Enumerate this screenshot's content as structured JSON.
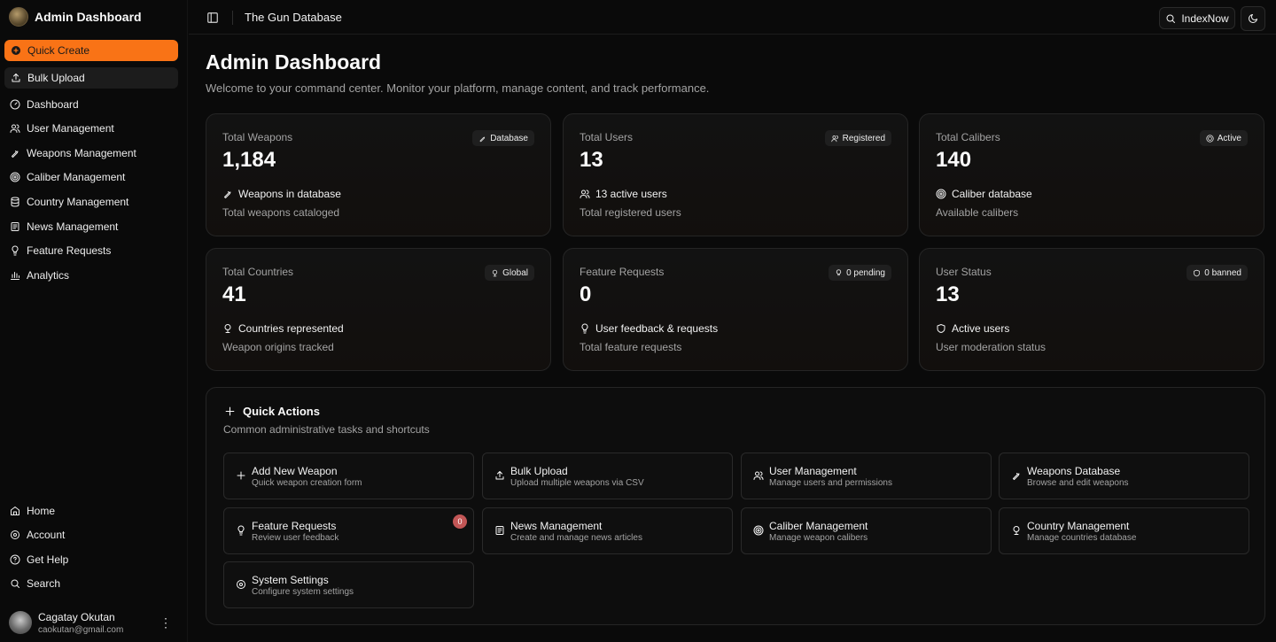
{
  "sidebar": {
    "brand": "Admin Dashboard",
    "quick_create": "Quick Create",
    "bulk_upload": "Bulk Upload",
    "nav": [
      {
        "label": "Dashboard",
        "icon": "gauge-icon"
      },
      {
        "label": "User Management",
        "icon": "users-icon"
      },
      {
        "label": "Weapons Management",
        "icon": "bullet-icon"
      },
      {
        "label": "Caliber Management",
        "icon": "target-icon"
      },
      {
        "label": "Country Management",
        "icon": "database-icon"
      },
      {
        "label": "News Management",
        "icon": "newspaper-icon"
      },
      {
        "label": "Feature Requests",
        "icon": "lightbulb-icon"
      },
      {
        "label": "Analytics",
        "icon": "bar-chart-icon"
      }
    ],
    "secondary": [
      {
        "label": "Home",
        "icon": "home-icon"
      },
      {
        "label": "Account",
        "icon": "gear-icon"
      },
      {
        "label": "Get Help",
        "icon": "help-icon"
      },
      {
        "label": "Search",
        "icon": "search-icon"
      }
    ],
    "user": {
      "name": "Cagatay Okutan",
      "email": "caokutan@gmail.com"
    }
  },
  "header": {
    "title": "The Gun Database",
    "indexnow_label": "IndexNow"
  },
  "main": {
    "title": "Admin Dashboard",
    "subtitle": "Welcome to your command center. Monitor your platform, manage content, and track performance.",
    "cards": [
      {
        "label": "Total Weapons",
        "value": "1,184",
        "badge": "Database",
        "desc": "Weapons in database",
        "foot": "Total weapons cataloged"
      },
      {
        "label": "Total Users",
        "value": "13",
        "badge": "Registered",
        "desc": "13 active users",
        "foot": "Total registered users"
      },
      {
        "label": "Total Calibers",
        "value": "140",
        "badge": "Active",
        "desc": "Caliber database",
        "foot": "Available calibers"
      },
      {
        "label": "Total Countries",
        "value": "41",
        "badge": "Global",
        "desc": "Countries represented",
        "foot": "Weapon origins tracked"
      },
      {
        "label": "Feature Requests",
        "value": "0",
        "badge": "0 pending",
        "desc": "User feedback & requests",
        "foot": "Total feature requests"
      },
      {
        "label": "User Status",
        "value": "13",
        "badge": "0 banned",
        "desc": "Active users",
        "foot": "User moderation status"
      }
    ],
    "quick_actions": {
      "title": "Quick Actions",
      "subtitle": "Common administrative tasks and shortcuts",
      "items": [
        {
          "label": "Add New Weapon",
          "desc": "Quick weapon creation form"
        },
        {
          "label": "Bulk Upload",
          "desc": "Upload multiple weapons via CSV"
        },
        {
          "label": "User Management",
          "desc": "Manage users and permissions"
        },
        {
          "label": "Weapons Database",
          "desc": "Browse and edit weapons"
        },
        {
          "label": "Feature Requests",
          "desc": "Review user feedback",
          "count": "0"
        },
        {
          "label": "News Management",
          "desc": "Create and manage news articles"
        },
        {
          "label": "Caliber Management",
          "desc": "Manage weapon calibers"
        },
        {
          "label": "Country Management",
          "desc": "Manage countries database"
        },
        {
          "label": "System Settings",
          "desc": "Configure system settings"
        }
      ]
    }
  },
  "colors": {
    "accent": "#f97316",
    "badge_alert": "#c25656",
    "background": "#0a0a0a"
  }
}
